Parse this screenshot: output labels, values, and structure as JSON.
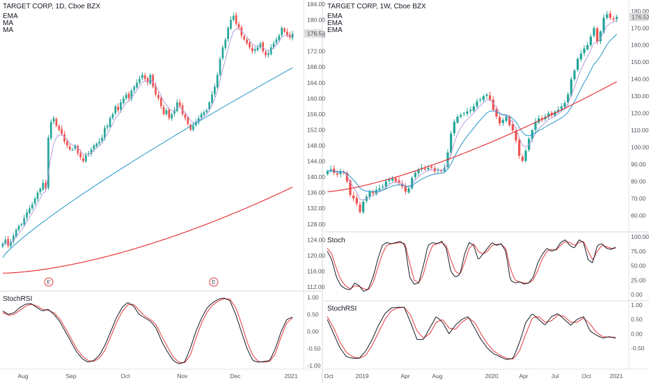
{
  "colors": {
    "up": "#26a69a",
    "down": "#ef5350",
    "ma_fast": "#b39ddb",
    "ma_mid": "#2196c8",
    "ma_slow": "#e5383b",
    "osc_k": "#131722",
    "osc_d": "#e5383b",
    "price_badge": "#dddddd",
    "earnings": "#e5383b"
  },
  "left": {
    "title": "TARGET CORP, 1D, Cboe BZX",
    "legend": [
      "EMA",
      "MA",
      "MA"
    ],
    "last_price": "176.53",
    "osc_label": "StochRSI",
    "earnings_marker": "E"
  },
  "right": {
    "title": "TARGET CORP, 1W, Cboe BZX",
    "legend": [
      "EMA",
      "EMA",
      "EMA"
    ],
    "last_price": "176.53",
    "osc1_label": "Stoch",
    "osc2_label": "StochRSI"
  },
  "chart_data": [
    {
      "type": "candlestick",
      "title": "TARGET CORP, 1D, Cboe BZX",
      "y_axis": {
        "min": 112,
        "max": 184,
        "ticks": [
          "184.00",
          "180.00",
          "176.00",
          "172.00",
          "168.00",
          "164.00",
          "160.00",
          "156.00",
          "152.00",
          "148.00",
          "144.00",
          "140.00",
          "136.00",
          "132.00",
          "128.00",
          "124.00",
          "120.00",
          "116.00",
          "112.00"
        ]
      },
      "x_ticks": [
        "Aug",
        "Sep",
        "Oct",
        "Nov",
        "Dec",
        "2021"
      ],
      "close": [
        123,
        124,
        122.5,
        123.5,
        125,
        126.5,
        127.5,
        128,
        129.5,
        131,
        132,
        133,
        134.5,
        136,
        137,
        138.5,
        137,
        150,
        154,
        155,
        153,
        152,
        151,
        149,
        148,
        147,
        147,
        148,
        146,
        145,
        144,
        145.5,
        146,
        147,
        148,
        148.5,
        149,
        150,
        152.5,
        153,
        155,
        156,
        158,
        157,
        159,
        160,
        161,
        160,
        162,
        163,
        164,
        165,
        166,
        165,
        164,
        166,
        163,
        161,
        160,
        158,
        156,
        157,
        155,
        156,
        157,
        159,
        158,
        156,
        155,
        153.5,
        152,
        153,
        154,
        155,
        156,
        156.5,
        157,
        159,
        161,
        163,
        166,
        170,
        173,
        175,
        178,
        180,
        181,
        179,
        178,
        176,
        175,
        174,
        173,
        172,
        172.5,
        173,
        174,
        172,
        171,
        171.5,
        173,
        174,
        175,
        176,
        178,
        177,
        176,
        175.5,
        176.5
      ],
      "series": [
        {
          "name": "EMA",
          "values_note": "short"
        },
        {
          "name": "MA",
          "values_note": "mid"
        },
        {
          "name": "MA",
          "values_note": "long"
        }
      ],
      "ma_mid": {
        "start": 119.5,
        "end": 167.8
      },
      "ma_long": {
        "start": 115.5,
        "end": 137.4
      },
      "earnings_markers": [
        "E",
        "E"
      ]
    },
    {
      "type": "line",
      "title": "StochRSI",
      "y_axis": {
        "min": -1,
        "max": 1,
        "ticks": [
          "1.00",
          "0.50",
          "0.00",
          "-0.50",
          "-1.00"
        ]
      },
      "k": [
        0.6,
        0.5,
        0.55,
        0.7,
        0.8,
        0.82,
        0.7,
        0.6,
        0.65,
        0.5,
        0.3,
        0.0,
        -0.3,
        -0.6,
        -0.8,
        -0.9,
        -0.85,
        -0.7,
        -0.4,
        0.0,
        0.4,
        0.7,
        0.85,
        0.75,
        0.5,
        0.4,
        0.3,
        0.1,
        -0.3,
        -0.6,
        -0.85,
        -0.95,
        -0.9,
        -0.5,
        0.0,
        0.4,
        0.7,
        0.85,
        0.95,
        0.98,
        0.9,
        0.5,
        0.0,
        -0.5,
        -0.85,
        -0.9,
        -0.88,
        -0.85,
        -0.5,
        0.0,
        0.35,
        0.42
      ],
      "d": [
        0.55,
        0.48,
        0.5,
        0.62,
        0.74,
        0.8,
        0.75,
        0.65,
        0.62,
        0.55,
        0.38,
        0.1,
        -0.2,
        -0.5,
        -0.72,
        -0.85,
        -0.88,
        -0.78,
        -0.55,
        -0.15,
        0.25,
        0.58,
        0.78,
        0.8,
        0.62,
        0.45,
        0.35,
        0.2,
        -0.15,
        -0.45,
        -0.75,
        -0.9,
        -0.92,
        -0.7,
        -0.2,
        0.25,
        0.58,
        0.78,
        0.9,
        0.96,
        0.95,
        0.7,
        0.25,
        -0.3,
        -0.7,
        -0.88,
        -0.9,
        -0.88,
        -0.65,
        -0.15,
        0.25,
        0.4
      ]
    },
    {
      "type": "candlestick",
      "title": "TARGET CORP, 1W, Cboe BZX",
      "y_axis": {
        "min": 50,
        "max": 185,
        "ticks": [
          "180.00",
          "170.00",
          "160.00",
          "150.00",
          "140.00",
          "130.00",
          "120.00",
          "110.00",
          "100.00",
          "90.00",
          "80.00",
          "70.00",
          "60.00"
        ]
      },
      "x_ticks": [
        "Oct",
        "2019",
        "Apr",
        "Aug",
        "2020",
        "Apr",
        "Jul",
        "Oct",
        "2021"
      ],
      "close": [
        86,
        87,
        85,
        84,
        86,
        85,
        80,
        72,
        70,
        67,
        62,
        68,
        71,
        74,
        73,
        75,
        76,
        77,
        80,
        81,
        82,
        80,
        79,
        77,
        74,
        76,
        82,
        85,
        87,
        88,
        87,
        88,
        88,
        86,
        87,
        86,
        88,
        97,
        108,
        115,
        118,
        119,
        120,
        121,
        122,
        124,
        127,
        128,
        130,
        131,
        128,
        122,
        118,
        114,
        116,
        118,
        113,
        110,
        104,
        95,
        92,
        98,
        105,
        110,
        115,
        117,
        116,
        118,
        120,
        119,
        121,
        122,
        124,
        126,
        131,
        140,
        145,
        152,
        155,
        158,
        160,
        165,
        170,
        162,
        168,
        176,
        178,
        176,
        175,
        176.5
      ],
      "series": [
        {
          "name": "EMA"
        },
        {
          "name": "EMA"
        },
        {
          "name": "EMA"
        }
      ],
      "ema_slow": {
        "start": 74,
        "end": 138.5
      }
    },
    {
      "type": "line",
      "title": "Stoch",
      "y_axis": {
        "min": 0,
        "max": 100,
        "ticks": [
          "100.00",
          "75.00",
          "50.00",
          "25.00",
          "0.00"
        ]
      },
      "k": [
        75,
        60,
        30,
        15,
        10,
        8,
        20,
        15,
        5,
        10,
        30,
        60,
        85,
        90,
        88,
        90,
        92,
        85,
        30,
        18,
        20,
        50,
        85,
        90,
        88,
        92,
        80,
        40,
        30,
        35,
        70,
        90,
        85,
        60,
        70,
        80,
        90,
        85,
        88,
        75,
        25,
        20,
        22,
        18,
        20,
        30,
        55,
        70,
        80,
        75,
        78,
        90,
        95,
        85,
        80,
        95,
        90,
        60,
        55,
        85,
        88,
        80,
        78,
        82
      ],
      "d": [
        80,
        70,
        45,
        25,
        15,
        10,
        15,
        14,
        10,
        8,
        20,
        45,
        70,
        85,
        88,
        89,
        90,
        88,
        55,
        25,
        20,
        35,
        65,
        85,
        88,
        90,
        85,
        60,
        40,
        35,
        55,
        80,
        88,
        75,
        70,
        75,
        85,
        87,
        87,
        80,
        45,
        25,
        22,
        20,
        20,
        25,
        42,
        62,
        75,
        78,
        77,
        85,
        92,
        90,
        85,
        90,
        92,
        75,
        60,
        75,
        85,
        83,
        80,
        80
      ]
    },
    {
      "type": "line",
      "title": "StochRSI",
      "y_axis": {
        "min": -1,
        "max": 1,
        "ticks": [
          "1.00",
          "0.50",
          "0.00",
          "-0.50"
        ]
      },
      "k": [
        0.5,
        0.0,
        -0.5,
        -0.8,
        -0.85,
        -0.85,
        -0.6,
        -0.2,
        0.3,
        0.7,
        0.9,
        0.92,
        0.92,
        0.4,
        -0.2,
        -0.2,
        0.2,
        0.6,
        0.4,
        0.0,
        0.3,
        0.5,
        0.6,
        0.2,
        -0.2,
        -0.5,
        -0.7,
        -0.8,
        -0.9,
        -0.85,
        -0.3,
        0.4,
        0.7,
        0.5,
        0.3,
        0.6,
        0.7,
        0.5,
        0.3,
        0.5,
        0.6,
        0.1,
        -0.05,
        -0.15,
        -0.1,
        -0.15
      ],
      "d": [
        0.6,
        0.2,
        -0.3,
        -0.65,
        -0.8,
        -0.85,
        -0.75,
        -0.4,
        0.05,
        0.5,
        0.8,
        0.9,
        0.92,
        0.65,
        0.1,
        -0.15,
        0.0,
        0.4,
        0.5,
        0.2,
        0.15,
        0.4,
        0.55,
        0.4,
        0.0,
        -0.35,
        -0.6,
        -0.75,
        -0.85,
        -0.88,
        -0.6,
        0.0,
        0.55,
        0.6,
        0.4,
        0.45,
        0.65,
        0.6,
        0.4,
        0.4,
        0.55,
        0.35,
        0.05,
        -0.1,
        -0.12,
        -0.12
      ]
    }
  ]
}
